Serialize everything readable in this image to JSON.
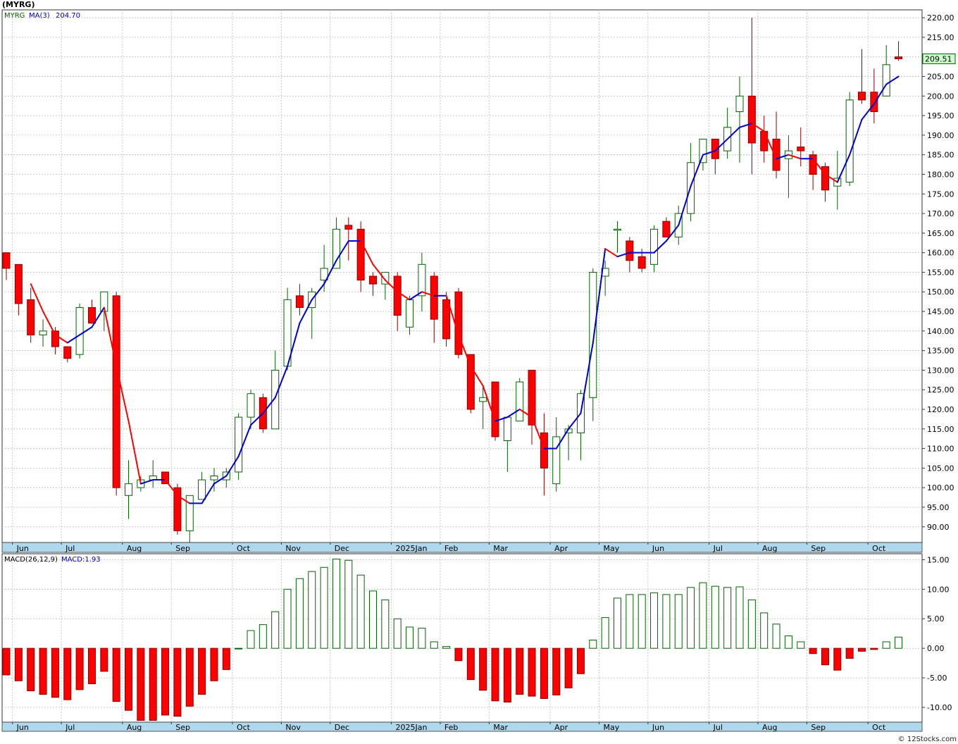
{
  "title": "(MYRG)",
  "copyright": "© 12Stocks.com",
  "price_panel": {
    "symbol_label": "MYRG",
    "ma_label": "MA(3)",
    "ma_value": "204.70",
    "last_price_label": "209.51",
    "last_price": 209.51,
    "ylim": [
      86,
      222
    ],
    "yticks": [
      90,
      95,
      100,
      105,
      110,
      115,
      120,
      125,
      130,
      135,
      140,
      145,
      150,
      155,
      160,
      165,
      170,
      175,
      180,
      185,
      190,
      195,
      200,
      205,
      210,
      215,
      220
    ],
    "colors": {
      "up": "#ffffff",
      "up_border": "#006400",
      "down": "#ff0000",
      "down_border": "#8b0000",
      "ma_up": "#0000cc",
      "ma_down": "#ff0000",
      "grid": "#bbbbbb",
      "axis_band": "#b0d8ec"
    }
  },
  "macd_panel": {
    "label": "MACD(26,12,9)",
    "value_label": "MACD:1.93",
    "ylim": [
      -12.5,
      16
    ],
    "yticks": [
      15,
      10,
      5,
      0,
      -5,
      -10
    ],
    "ytick_labels": [
      "15.00",
      "10.00",
      "5.00",
      "0.00",
      "-5.00",
      "-10.00"
    ]
  },
  "x_axis_labels": [
    {
      "text": "Jun",
      "index": 1
    },
    {
      "text": "Jul",
      "index": 5
    },
    {
      "text": "Aug",
      "index": 10
    },
    {
      "text": "Sep",
      "index": 14
    },
    {
      "text": "Oct",
      "index": 19
    },
    {
      "text": "Nov",
      "index": 23
    },
    {
      "text": "Dec",
      "index": 27
    },
    {
      "text": "2025Jan",
      "index": 32
    },
    {
      "text": "Feb",
      "index": 36
    },
    {
      "text": "Mar",
      "index": 40
    },
    {
      "text": "Apr",
      "index": 45
    },
    {
      "text": "May",
      "index": 49
    },
    {
      "text": "Jun",
      "index": 53
    },
    {
      "text": "Jul",
      "index": 58
    },
    {
      "text": "Aug",
      "index": 62
    },
    {
      "text": "Sep",
      "index": 66
    },
    {
      "text": "Oct",
      "index": 71
    }
  ],
  "chart_data": {
    "type": "candlestick",
    "period": "weekly",
    "candles": [
      {
        "o": 160,
        "h": 160,
        "l": 153,
        "c": 156
      },
      {
        "o": 157,
        "h": 157,
        "l": 144,
        "c": 147
      },
      {
        "o": 148,
        "h": 151,
        "l": 137,
        "c": 139
      },
      {
        "o": 139,
        "h": 143,
        "l": 136,
        "c": 140
      },
      {
        "o": 140,
        "h": 141,
        "l": 134,
        "c": 136
      },
      {
        "o": 136,
        "h": 136,
        "l": 132,
        "c": 133
      },
      {
        "o": 134,
        "h": 147,
        "l": 133,
        "c": 146
      },
      {
        "o": 146,
        "h": 148,
        "l": 142,
        "c": 142
      },
      {
        "o": 145,
        "h": 150,
        "l": 140,
        "c": 150
      },
      {
        "o": 149,
        "h": 150,
        "l": 98,
        "c": 100
      },
      {
        "o": 98,
        "h": 107,
        "l": 92,
        "c": 101
      },
      {
        "o": 100,
        "h": 103,
        "l": 99,
        "c": 102
      },
      {
        "o": 102,
        "h": 107,
        "l": 100,
        "c": 103
      },
      {
        "o": 104,
        "h": 104,
        "l": 101,
        "c": 101
      },
      {
        "o": 100,
        "h": 101,
        "l": 88,
        "c": 89
      },
      {
        "o": 89,
        "h": 98,
        "l": 86,
        "c": 98
      },
      {
        "o": 97,
        "h": 104,
        "l": 97,
        "c": 102
      },
      {
        "o": 102,
        "h": 105,
        "l": 99,
        "c": 103
      },
      {
        "o": 102,
        "h": 105,
        "l": 100,
        "c": 104
      },
      {
        "o": 104,
        "h": 119,
        "l": 102,
        "c": 118
      },
      {
        "o": 118,
        "h": 125,
        "l": 115,
        "c": 124
      },
      {
        "o": 123,
        "h": 124,
        "l": 114,
        "c": 115
      },
      {
        "o": 115,
        "h": 135,
        "l": 115,
        "c": 130
      },
      {
        "o": 131,
        "h": 151,
        "l": 130,
        "c": 148
      },
      {
        "o": 149,
        "h": 152,
        "l": 144,
        "c": 146
      },
      {
        "o": 146,
        "h": 151,
        "l": 138,
        "c": 150
      },
      {
        "o": 153,
        "h": 162,
        "l": 150,
        "c": 156
      },
      {
        "o": 156,
        "h": 169,
        "l": 157,
        "c": 166
      },
      {
        "o": 167,
        "h": 169,
        "l": 158,
        "c": 166
      },
      {
        "o": 166,
        "h": 168,
        "l": 150,
        "c": 153
      },
      {
        "o": 154,
        "h": 155,
        "l": 149,
        "c": 152
      },
      {
        "o": 152,
        "h": 155,
        "l": 148,
        "c": 155
      },
      {
        "o": 154,
        "h": 155,
        "l": 140,
        "c": 144
      },
      {
        "o": 141,
        "h": 149,
        "l": 139,
        "c": 148
      },
      {
        "o": 149,
        "h": 160,
        "l": 145,
        "c": 157
      },
      {
        "o": 154,
        "h": 155,
        "l": 137,
        "c": 143
      },
      {
        "o": 148,
        "h": 150,
        "l": 136,
        "c": 138
      },
      {
        "o": 150,
        "h": 151,
        "l": 133,
        "c": 134
      },
      {
        "o": 134,
        "h": 134,
        "l": 119,
        "c": 120
      },
      {
        "o": 122,
        "h": 126,
        "l": 115,
        "c": 123
      },
      {
        "o": 127,
        "h": 127,
        "l": 112,
        "c": 113
      },
      {
        "o": 112,
        "h": 118,
        "l": 104,
        "c": 118
      },
      {
        "o": 117,
        "h": 128,
        "l": 117,
        "c": 127
      },
      {
        "o": 130,
        "h": 130,
        "l": 111,
        "c": 116
      },
      {
        "o": 114,
        "h": 119,
        "l": 98,
        "c": 105
      },
      {
        "o": 101,
        "h": 118,
        "l": 99,
        "c": 113
      },
      {
        "o": 114,
        "h": 116,
        "l": 107,
        "c": 115
      },
      {
        "o": 114,
        "h": 125,
        "l": 107,
        "c": 124
      },
      {
        "o": 123,
        "h": 156,
        "l": 117,
        "c": 155
      },
      {
        "o": 154,
        "h": 158,
        "l": 149,
        "c": 156
      },
      {
        "o": 166,
        "h": 168,
        "l": 160,
        "c": 166
      },
      {
        "o": 163,
        "h": 164,
        "l": 155,
        "c": 158
      },
      {
        "o": 159,
        "h": 161,
        "l": 155,
        "c": 156
      },
      {
        "o": 157,
        "h": 167,
        "l": 155,
        "c": 166
      },
      {
        "o": 168,
        "h": 169,
        "l": 164,
        "c": 164
      },
      {
        "o": 164,
        "h": 172,
        "l": 162,
        "c": 170
      },
      {
        "o": 170,
        "h": 188,
        "l": 168,
        "c": 183
      },
      {
        "o": 183,
        "h": 189,
        "l": 181,
        "c": 189
      },
      {
        "o": 189,
        "h": 189,
        "l": 180,
        "c": 184
      },
      {
        "o": 186,
        "h": 197,
        "l": 184,
        "c": 192
      },
      {
        "o": 196,
        "h": 205,
        "l": 183,
        "c": 200
      },
      {
        "o": 200,
        "h": 220,
        "l": 180,
        "c": 188
      },
      {
        "o": 191,
        "h": 195,
        "l": 183,
        "c": 186
      },
      {
        "o": 189,
        "h": 196,
        "l": 179,
        "c": 181
      },
      {
        "o": 184,
        "h": 190,
        "l": 174,
        "c": 186
      },
      {
        "o": 187,
        "h": 192,
        "l": 182,
        "c": 186
      },
      {
        "o": 185,
        "h": 186,
        "l": 176,
        "c": 180
      },
      {
        "o": 182,
        "h": 183,
        "l": 173,
        "c": 176
      },
      {
        "o": 177,
        "h": 186,
        "l": 171,
        "c": 179
      },
      {
        "o": 178,
        "h": 201,
        "l": 177,
        "c": 199
      },
      {
        "o": 201,
        "h": 212,
        "l": 198,
        "c": 199
      },
      {
        "o": 201,
        "h": 207,
        "l": 193,
        "c": 196
      },
      {
        "o": 200,
        "h": 213,
        "l": 200,
        "c": 208
      },
      {
        "o": 210,
        "h": 214,
        "l": 209,
        "c": 209.5
      }
    ],
    "ma3": [
      null,
      null,
      152,
      145,
      139,
      137,
      139,
      141,
      146,
      131,
      117,
      101,
      102,
      102,
      98,
      96,
      96,
      101,
      103,
      108,
      116,
      119,
      123,
      131,
      142,
      148,
      152,
      158,
      163,
      163,
      157,
      153,
      150,
      148,
      150,
      149,
      149,
      139,
      131,
      126,
      117,
      118,
      120,
      118,
      110,
      110,
      115,
      119,
      137,
      161,
      159,
      160,
      160,
      160,
      163,
      167,
      177,
      185,
      186,
      189,
      192,
      193,
      191,
      184,
      185,
      184,
      184,
      180,
      178,
      185,
      194,
      198,
      203,
      205
    ],
    "macd": [
      -4.5,
      -5.5,
      -7.2,
      -7.8,
      -8.3,
      -8.7,
      -7,
      -6,
      -3.9,
      -9,
      -10.5,
      -12.2,
      -12.2,
      -11.3,
      -11.5,
      -9.8,
      -7.8,
      -5.5,
      -3.6,
      0,
      3,
      4,
      6.2,
      10,
      11.8,
      13,
      13.7,
      15.1,
      14.9,
      12.4,
      9.7,
      8.2,
      5,
      3.6,
      3.4,
      1.1,
      0.3,
      -2.1,
      -5.3,
      -7.1,
      -8.9,
      -9.1,
      -7.8,
      -8.1,
      -8.5,
      -7.9,
      -6.7,
      -4.3,
      1.4,
      5.2,
      8.5,
      9.1,
      9.1,
      9.4,
      9.1,
      9.1,
      10.3,
      11.1,
      10.5,
      10.3,
      10.4,
      8.2,
      6,
      4.1,
      2.1,
      1.1,
      -0.9,
      -2.8,
      -3.7,
      -1.7,
      -0.5,
      -0.2,
      1.1,
      1.9
    ]
  }
}
